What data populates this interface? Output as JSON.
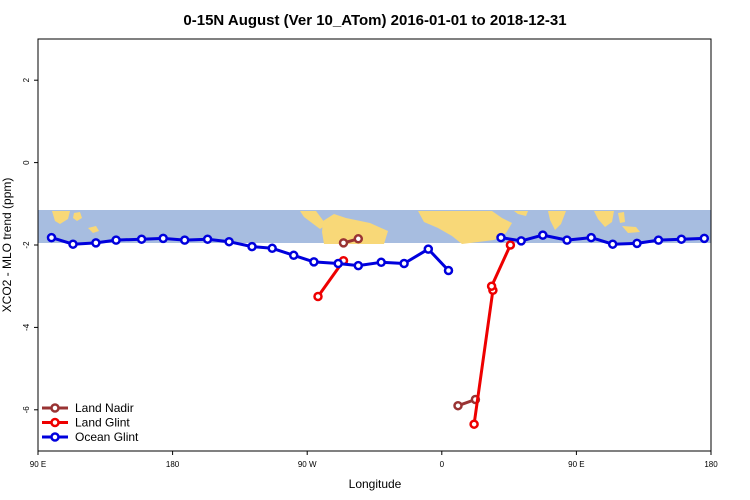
{
  "chart_data": {
    "type": "line",
    "title": "0-15N August (Ver 10_ATom)   2016-01-01 to 2018-12-31",
    "xlabel": "Longitude",
    "ylabel": "XCO2 - MLO trend (ppm)",
    "xlim": [
      0,
      500
    ],
    "ylim": [
      -7,
      3
    ],
    "x_ticks": [
      {
        "value": 0,
        "label": "90 E"
      },
      {
        "value": 100,
        "label": "180"
      },
      {
        "value": 200,
        "label": "90 W"
      },
      {
        "value": 300,
        "label": "0"
      },
      {
        "value": 400,
        "label": "90 E"
      },
      {
        "value": 500,
        "label": "180"
      }
    ],
    "y_ticks": [
      {
        "value": 2,
        "label": "2"
      },
      {
        "value": 0,
        "label": "0"
      },
      {
        "value": -2,
        "label": "-2"
      },
      {
        "value": -4,
        "label": "-4"
      },
      {
        "value": -6,
        "label": "-6"
      }
    ],
    "map_band": {
      "lat_range_y": [
        -1.95,
        -1.15
      ],
      "ocean_color": "#a7bde0",
      "land_color": "#f8d878"
    },
    "series": [
      {
        "name": "Land Nadir",
        "color": "#993333",
        "segments": [
          [
            [
              227,
              -1.95
            ],
            [
              238,
              -1.85
            ]
          ],
          [
            [
              312,
              -5.9
            ],
            [
              325,
              -5.75
            ]
          ]
        ]
      },
      {
        "name": "Land Glint",
        "color": "#ee0000",
        "segments": [
          [
            [
              208,
              -3.25
            ],
            [
              227,
              -2.38
            ]
          ],
          [
            [
              324,
              -6.35
            ],
            [
              338,
              -3.1
            ],
            [
              337,
              -3.0
            ],
            [
              351,
              -2.0
            ]
          ]
        ]
      },
      {
        "name": "Ocean Glint",
        "color": "#0000dd",
        "segments": [
          [
            [
              10,
              -1.82
            ],
            [
              26,
              -1.98
            ],
            [
              43,
              -1.95
            ],
            [
              58,
              -1.88
            ],
            [
              77,
              -1.86
            ],
            [
              93,
              -1.84
            ],
            [
              109,
              -1.88
            ],
            [
              126,
              -1.86
            ],
            [
              142,
              -1.92
            ],
            [
              159,
              -2.04
            ],
            [
              174,
              -2.08
            ],
            [
              190,
              -2.25
            ],
            [
              205,
              -2.41
            ],
            [
              223,
              -2.45
            ],
            [
              238,
              -2.5
            ],
            [
              255,
              -2.42
            ],
            [
              272,
              -2.45
            ],
            [
              290,
              -2.1
            ],
            [
              305,
              -2.62
            ]
          ],
          [
            [
              344,
              -1.82
            ],
            [
              359,
              -1.9
            ],
            [
              375,
              -1.76
            ],
            [
              393,
              -1.88
            ],
            [
              411,
              -1.82
            ],
            [
              427,
              -1.98
            ],
            [
              445,
              -1.96
            ],
            [
              461,
              -1.88
            ],
            [
              478,
              -1.86
            ],
            [
              495,
              -1.84
            ]
          ]
        ]
      }
    ],
    "legend": {
      "position": "bottom-left",
      "entries": [
        "Land Nadir",
        "Land Glint",
        "Ocean Glint"
      ]
    }
  }
}
